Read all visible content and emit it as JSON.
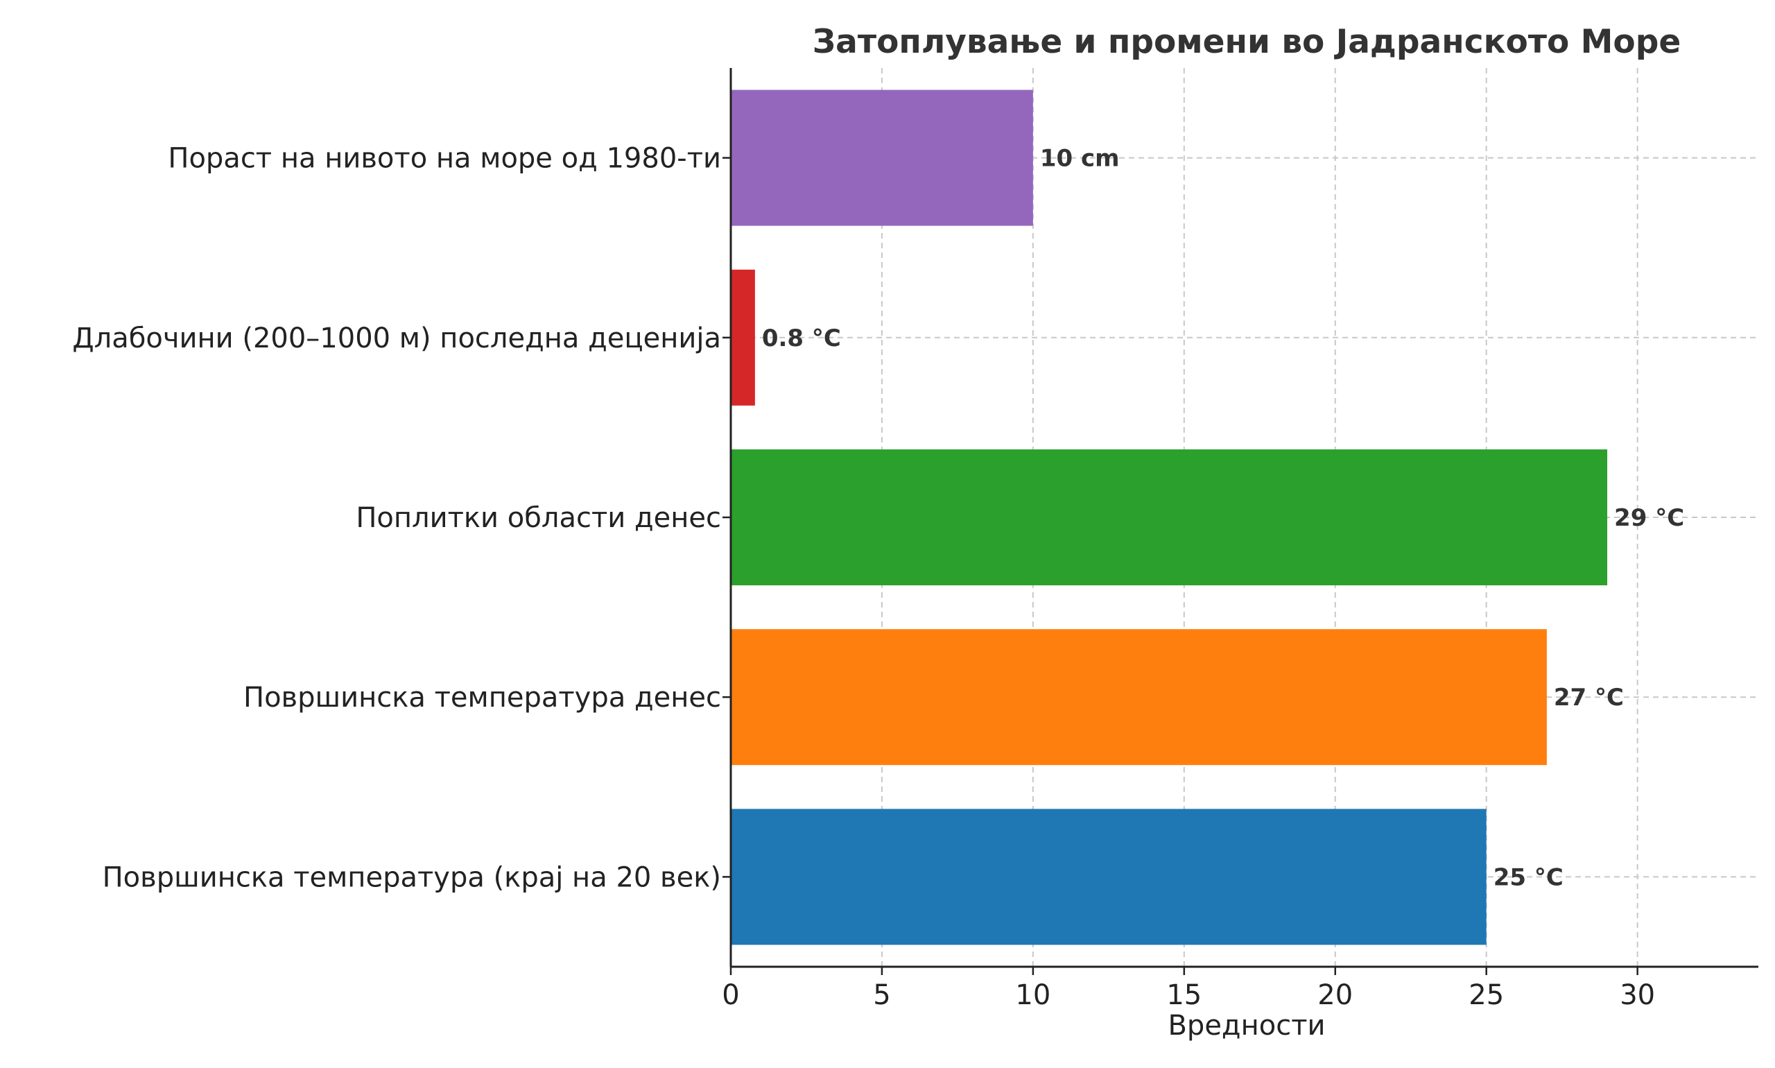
{
  "chart_data": {
    "type": "bar",
    "orientation": "horizontal",
    "title": "Затоплување и промени во Јадранското Море",
    "xlabel": "Вредности",
    "ylabel": "",
    "xlim": [
      0,
      34
    ],
    "xticks": [
      0,
      5,
      10,
      15,
      20,
      25,
      30
    ],
    "grid": true,
    "categories": [
      "Површинска температура (крај на 20 век)",
      "Површинска температура денес",
      "Поплитки области денес",
      "Длабочини (200–1000 м) последна деценија",
      "Пораст на нивото на море од 1980-ти"
    ],
    "values": [
      25,
      27,
      29,
      0.8,
      10
    ],
    "data_labels": [
      "25 °C",
      "27 °C",
      "29 °C",
      "0.8 °C",
      "10 cm"
    ],
    "colors": [
      "#1f77b4",
      "#ff7f0e",
      "#2ca02c",
      "#d62728",
      "#9467bd"
    ]
  }
}
